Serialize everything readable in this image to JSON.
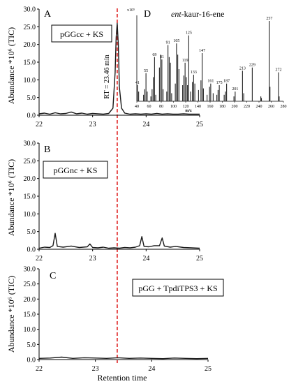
{
  "figure": {
    "shared_xlabel": "Retention time",
    "rt_label": "RT = 23.46 min",
    "marker_color": "#e02020",
    "trace_color": "#1a1a1a",
    "marker_rt": 23.46
  },
  "chart_data": [
    {
      "type": "line",
      "panel": "A",
      "sample_label": "pGGcc + KS",
      "ylabel": "Abundance *10⁶ (TIC)",
      "xlim": [
        22,
        25
      ],
      "ylim": [
        0,
        30
      ],
      "x_ticks": [
        "22",
        "23",
        "24",
        "25"
      ],
      "y_ticks": [
        "0.0",
        "5.0",
        "10.0",
        "15.0",
        "20.0",
        "25.0",
        "30.0"
      ],
      "series": [
        {
          "x": [
            22.0,
            22.1,
            22.2,
            22.3,
            22.4,
            22.5,
            22.6,
            22.7,
            22.8,
            22.9,
            23.0,
            23.1,
            23.2,
            23.3,
            23.38,
            23.42,
            23.44,
            23.46,
            23.48,
            23.5,
            23.54,
            23.6,
            23.7,
            23.8,
            23.9,
            24.0,
            24.1,
            24.2,
            24.3,
            24.4,
            24.5,
            24.6,
            24.7,
            24.8,
            24.9,
            25.0
          ],
          "y": [
            0.4,
            0.6,
            0.3,
            0.7,
            0.4,
            0.5,
            0.9,
            0.4,
            0.6,
            0.3,
            0.5,
            0.4,
            0.3,
            0.5,
            2.0,
            12.0,
            22.0,
            26.0,
            20.0,
            8.0,
            2.0,
            0.6,
            0.3,
            0.4,
            0.3,
            0.4,
            0.3,
            0.5,
            0.3,
            0.4,
            0.3,
            0.3,
            0.4,
            0.3,
            0.3,
            0.3
          ]
        }
      ]
    },
    {
      "type": "line",
      "panel": "B",
      "sample_label": "pGGnc + KS",
      "ylabel": "Abundance *10⁶ (TIC)",
      "xlim": [
        22,
        25
      ],
      "ylim": [
        0,
        30
      ],
      "x_ticks": [
        "22",
        "23",
        "24",
        "25"
      ],
      "y_ticks": [
        "0.0",
        "5.0",
        "10.0",
        "15.0",
        "20.0",
        "25.0",
        "30.0"
      ],
      "series": [
        {
          "x": [
            22.0,
            22.1,
            22.2,
            22.26,
            22.3,
            22.34,
            22.45,
            22.6,
            22.75,
            22.9,
            22.95,
            23.0,
            23.1,
            23.2,
            23.3,
            23.4,
            23.5,
            23.6,
            23.7,
            23.8,
            23.88,
            23.92,
            23.96,
            24.05,
            24.15,
            24.25,
            24.3,
            24.34,
            24.45,
            24.55,
            24.7,
            24.85,
            25.0
          ],
          "y": [
            0.3,
            0.6,
            0.5,
            1.0,
            4.5,
            0.8,
            0.6,
            0.9,
            0.5,
            0.7,
            1.5,
            0.5,
            0.4,
            0.6,
            0.3,
            0.4,
            0.3,
            0.5,
            0.4,
            0.6,
            1.0,
            3.6,
            0.8,
            0.7,
            1.0,
            1.0,
            3.2,
            0.9,
            0.6,
            0.8,
            0.5,
            0.4,
            0.3
          ]
        }
      ]
    },
    {
      "type": "line",
      "panel": "C",
      "sample_label": "pGG + TpdiTPS3 + KS",
      "ylabel": "Abundance *10⁶ (TIC)",
      "xlim": [
        22,
        25
      ],
      "ylim": [
        0,
        30
      ],
      "x_ticks": [
        "22",
        "23",
        "24",
        "25"
      ],
      "y_ticks": [
        "0.0",
        "5.0",
        "10.0",
        "15.0",
        "20.0",
        "25.0",
        "30.0"
      ],
      "series": [
        {
          "x": [
            22.0,
            22.2,
            22.4,
            22.6,
            22.8,
            23.0,
            23.2,
            23.4,
            23.6,
            23.8,
            24.0,
            24.2,
            24.4,
            24.6,
            24.8,
            25.0
          ],
          "y": [
            0.4,
            0.5,
            0.8,
            0.4,
            0.6,
            0.5,
            0.4,
            0.6,
            0.4,
            0.5,
            0.4,
            0.3,
            0.5,
            0.4,
            0.3,
            0.4
          ]
        }
      ]
    },
    {
      "type": "bar",
      "panel": "D",
      "title": "ent-kaur-16-ene",
      "title_italic_part": "ent",
      "title_rest": "-kaur-16-ene",
      "scale_label": "x10⁵",
      "xlabel": "m/z",
      "xlim": [
        40,
        280
      ],
      "ylim": [
        0,
        100
      ],
      "x_ticks": [
        "40",
        "60",
        "80",
        "100",
        "120",
        "140",
        "160",
        "180",
        "200",
        "220",
        "240",
        "260",
        "280"
      ],
      "peaks_mz": [
        41,
        43,
        51,
        53,
        55,
        57,
        63,
        65,
        67,
        69,
        71,
        77,
        79,
        81,
        83,
        89,
        91,
        93,
        95,
        97,
        103,
        105,
        107,
        109,
        115,
        117,
        119,
        121,
        123,
        125,
        128,
        131,
        133,
        135,
        141,
        145,
        147,
        149,
        155,
        159,
        161,
        165,
        171,
        173,
        175,
        183,
        185,
        187,
        199,
        201,
        213,
        215,
        229,
        243,
        244,
        257,
        258,
        272,
        273
      ],
      "peaks_intensity": [
        20,
        12,
        8,
        15,
        35,
        12,
        6,
        15,
        30,
        55,
        8,
        42,
        58,
        52,
        15,
        12,
        70,
        55,
        48,
        10,
        22,
        72,
        58,
        40,
        20,
        32,
        48,
        30,
        20,
        82,
        12,
        24,
        33,
        22,
        14,
        26,
        60,
        16,
        8,
        18,
        22,
        10,
        8,
        14,
        20,
        8,
        12,
        22,
        6,
        12,
        38,
        10,
        42,
        6,
        4,
        100,
        18,
        36,
        6
      ],
      "labeled_peaks": [
        "41",
        "55",
        "69",
        "81",
        "91",
        "105",
        "119",
        "125",
        "133",
        "147",
        "161",
        "175",
        "187",
        "201",
        "213",
        "229",
        "257",
        "272"
      ]
    }
  ]
}
